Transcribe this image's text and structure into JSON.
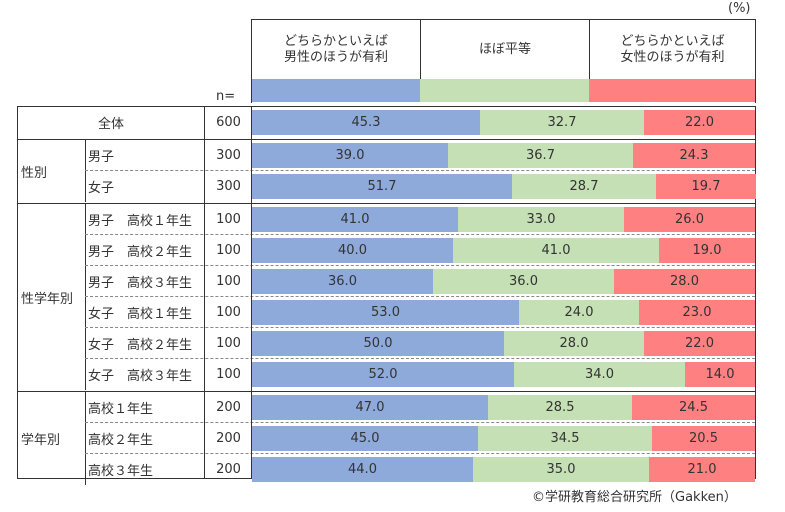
{
  "unit_label": "(%)",
  "n_label": "n=",
  "legend": [
    {
      "label_line1": "どちらかといえば",
      "label_line2": "男性のほうが有利",
      "color": "#8eaadb"
    },
    {
      "label_line1": "ほぼ平等",
      "label_line2": "",
      "color": "#c5e0b4"
    },
    {
      "label_line1": "どちらかといえば",
      "label_line2": "女性のほうが有利",
      "color": "#ff8080"
    }
  ],
  "copyright": "©学研教育総合研究所（Gakken）",
  "chart_data": {
    "type": "bar",
    "subtype": "stacked-horizontal-100",
    "unit": "%",
    "series": [
      {
        "name": "どちらかといえば男性のほうが有利",
        "values": [
          45.3,
          39.0,
          51.7,
          41.0,
          40.0,
          36.0,
          53.0,
          50.0,
          52.0,
          47.0,
          45.0,
          44.0
        ]
      },
      {
        "name": "ほぼ平等",
        "values": [
          32.7,
          36.7,
          28.7,
          33.0,
          41.0,
          36.0,
          24.0,
          28.0,
          34.0,
          28.5,
          34.5,
          35.0
        ]
      },
      {
        "name": "どちらかといえば女性のほうが有利",
        "values": [
          22.0,
          24.3,
          19.7,
          26.0,
          19.0,
          28.0,
          23.0,
          22.0,
          14.0,
          24.5,
          20.5,
          21.0
        ]
      }
    ],
    "groups": [
      {
        "label": "",
        "rows": [
          {
            "label": "全体",
            "n": "600"
          }
        ]
      },
      {
        "label": "性別",
        "rows": [
          {
            "label": "男子",
            "n": "300"
          },
          {
            "label": "女子",
            "n": "300"
          }
        ]
      },
      {
        "label": "性学年別",
        "rows": [
          {
            "label": "男子　高校１年生",
            "n": "100"
          },
          {
            "label": "男子　高校２年生",
            "n": "100"
          },
          {
            "label": "男子　高校３年生",
            "n": "100"
          },
          {
            "label": "女子　高校１年生",
            "n": "100"
          },
          {
            "label": "女子　高校２年生",
            "n": "100"
          },
          {
            "label": "女子　高校３年生",
            "n": "100"
          }
        ]
      },
      {
        "label": "学年別",
        "rows": [
          {
            "label": "高校１年生",
            "n": "200"
          },
          {
            "label": "高校２年生",
            "n": "200"
          },
          {
            "label": "高校３年生",
            "n": "200"
          }
        ]
      }
    ],
    "value_labels": [
      [
        "45.3",
        "32.7",
        "22.0"
      ],
      [
        "39.0",
        "36.7",
        "24.3"
      ],
      [
        "51.7",
        "28.7",
        "19.7"
      ],
      [
        "41.0",
        "33.0",
        "26.0"
      ],
      [
        "40.0",
        "41.0",
        "19.0"
      ],
      [
        "36.0",
        "36.0",
        "28.0"
      ],
      [
        "53.0",
        "24.0",
        "23.0"
      ],
      [
        "50.0",
        "28.0",
        "22.0"
      ],
      [
        "52.0",
        "34.0",
        "14.0"
      ],
      [
        "47.0",
        "28.5",
        "24.5"
      ],
      [
        "45.0",
        "34.5",
        "20.5"
      ],
      [
        "44.0",
        "35.0",
        "21.0"
      ]
    ],
    "xlim": [
      0,
      100
    ]
  }
}
